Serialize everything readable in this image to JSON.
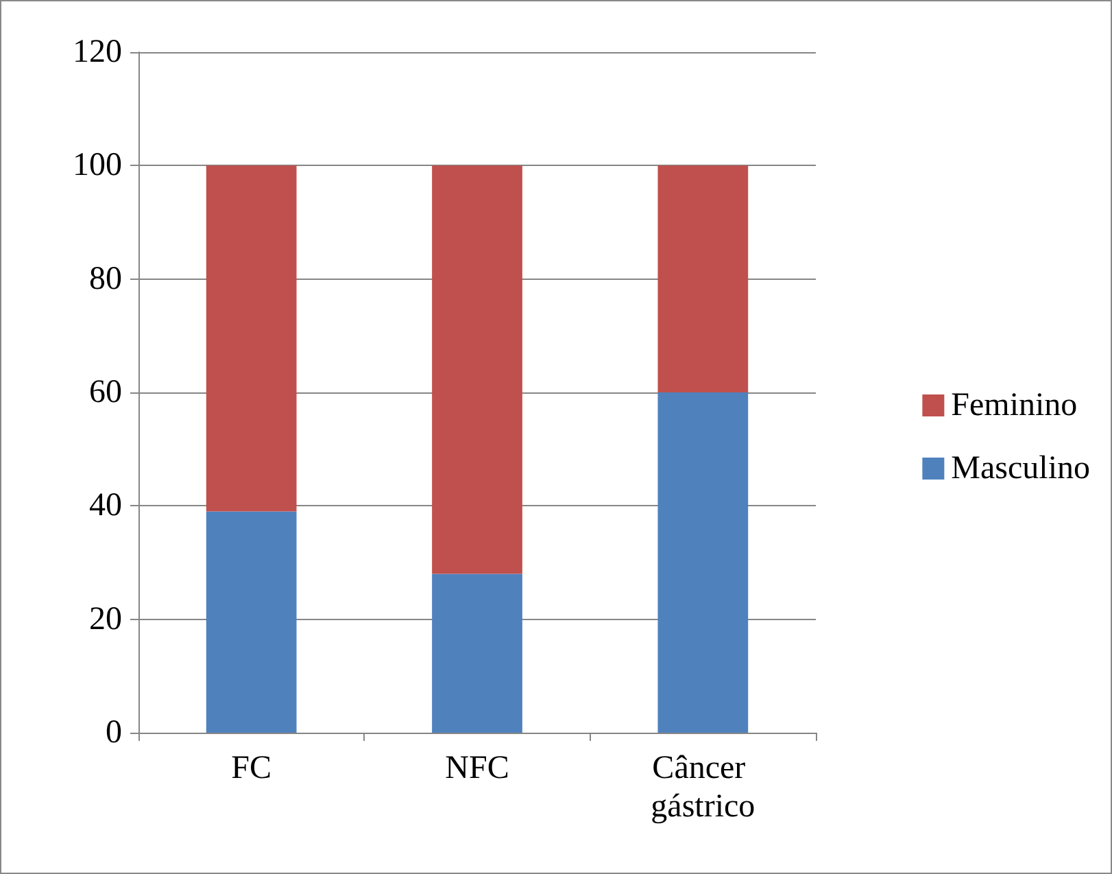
{
  "chart_data": {
    "type": "bar",
    "stacked": true,
    "categories": [
      "FC",
      "NFC",
      "Câncer gástrico"
    ],
    "series": [
      {
        "name": "Masculino",
        "color": "#4f81bd",
        "values": [
          39,
          28,
          60
        ]
      },
      {
        "name": "Feminino",
        "color": "#c0504d",
        "values": [
          61,
          72,
          40
        ]
      }
    ],
    "ylim": [
      0,
      120
    ],
    "yticks": [
      0,
      20,
      40,
      60,
      80,
      100,
      120
    ],
    "grid": "y",
    "legend": "right"
  }
}
